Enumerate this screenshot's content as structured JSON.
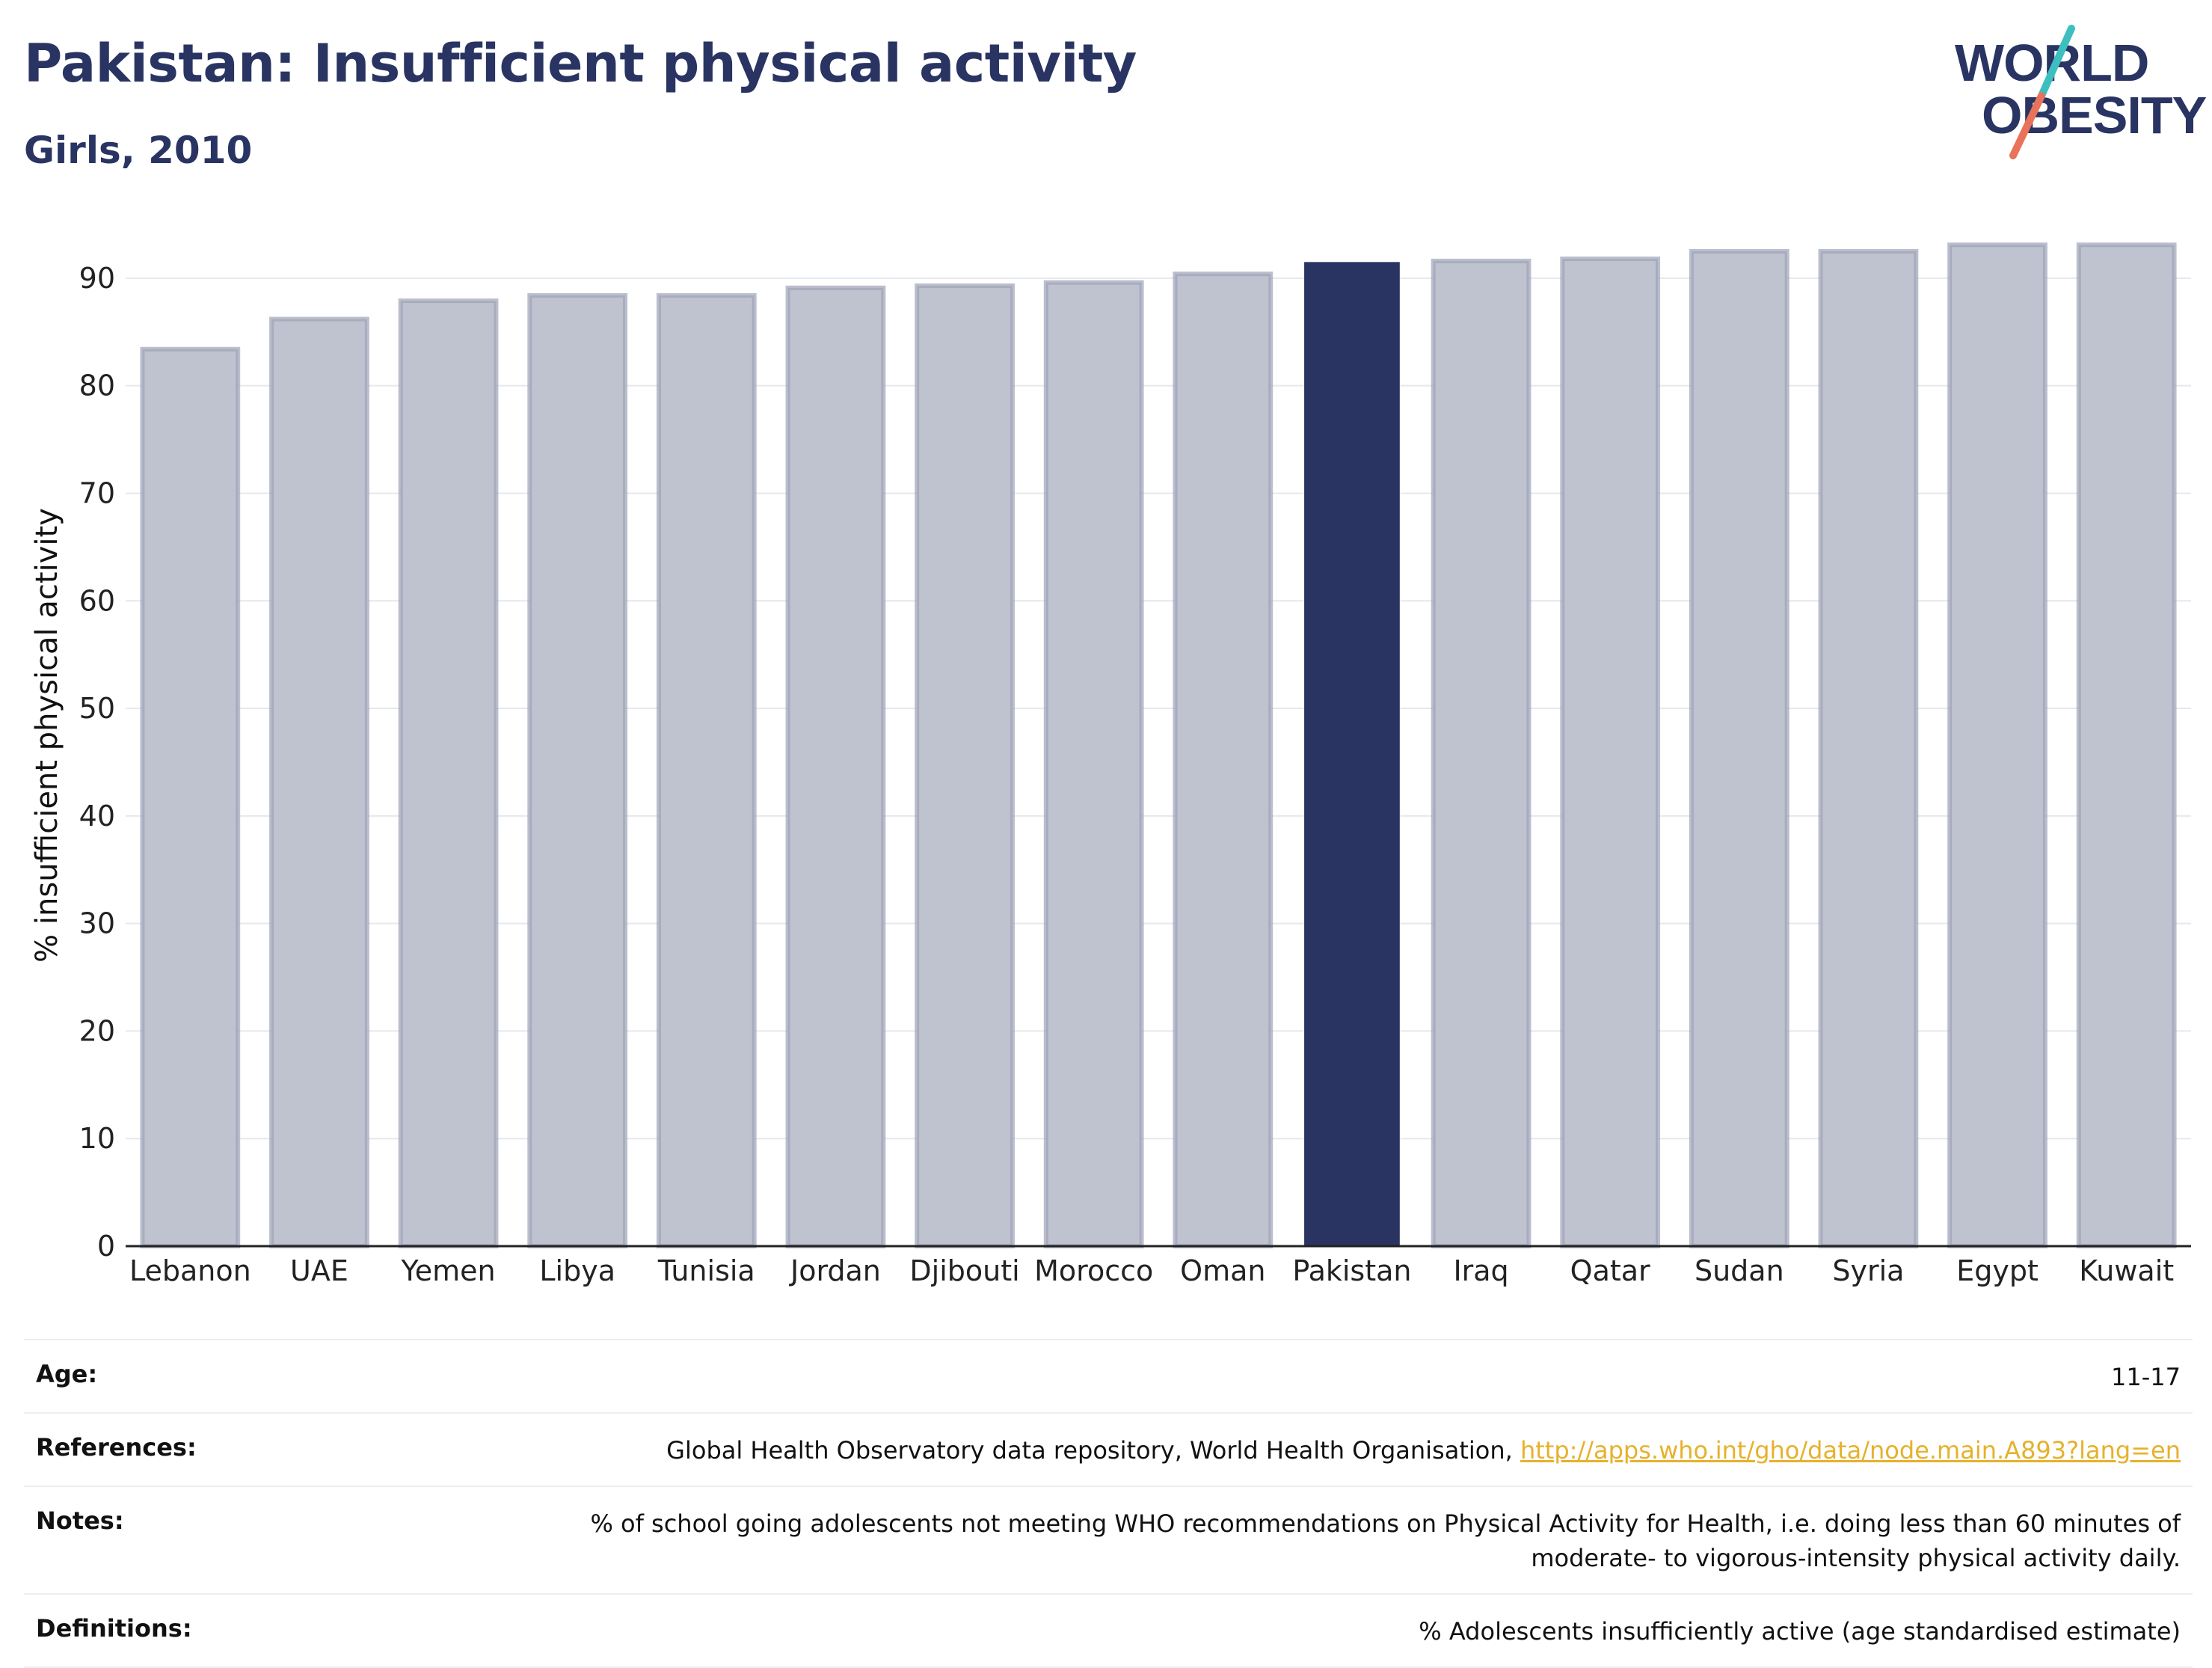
{
  "header": {
    "title": "Pakistan: Insufficient physical activity",
    "subtitle": "Girls, 2010"
  },
  "logo": {
    "line1": "WORLD",
    "line2": "OBESITY",
    "colors": {
      "text": "#293462",
      "slash_teal": "#3dbfbf",
      "slash_coral": "#e8735a"
    }
  },
  "chart_data": {
    "type": "bar",
    "title": "Pakistan: Insufficient physical activity",
    "subtitle": "Girls, 2010",
    "xlabel": "",
    "ylabel": "% insufficient physical activity",
    "ylim": [
      0,
      95
    ],
    "yticks": [
      0,
      10,
      20,
      30,
      40,
      50,
      60,
      70,
      80,
      90
    ],
    "grid": true,
    "categories": [
      "Lebanon",
      "UAE",
      "Yemen",
      "Libya",
      "Tunisia",
      "Jordan",
      "Djibouti",
      "Morocco",
      "Oman",
      "Pakistan",
      "Iraq",
      "Qatar",
      "Sudan",
      "Syria",
      "Egypt",
      "Kuwait"
    ],
    "values": [
      83.4,
      86.2,
      87.9,
      88.4,
      88.4,
      89.1,
      89.3,
      89.6,
      90.4,
      91.5,
      91.6,
      91.8,
      92.5,
      92.5,
      93.1,
      93.1
    ],
    "highlight": "Pakistan",
    "colors": {
      "highlight": "#293462",
      "other": "#bfc2cf",
      "other_border": "#9ea3b8",
      "grid": "#e6e8ee"
    }
  },
  "info": {
    "age": {
      "label": "Age:",
      "value": "11-17"
    },
    "references": {
      "label": "References:",
      "text": "Global Health Observatory data repository, World Health Organisation, ",
      "link": "http://apps.who.int/gho/data/node.main.A893?lang=en"
    },
    "notes": {
      "label": "Notes:",
      "value": "% of school going adolescents not meeting WHO recommendations on Physical Activity for Health, i.e. doing less than 60 minutes of moderate- to vigorous-intensity physical activity daily."
    },
    "definitions": {
      "label": "Definitions:",
      "value": "% Adolescents insufficiently active (age standardised estimate)"
    }
  }
}
